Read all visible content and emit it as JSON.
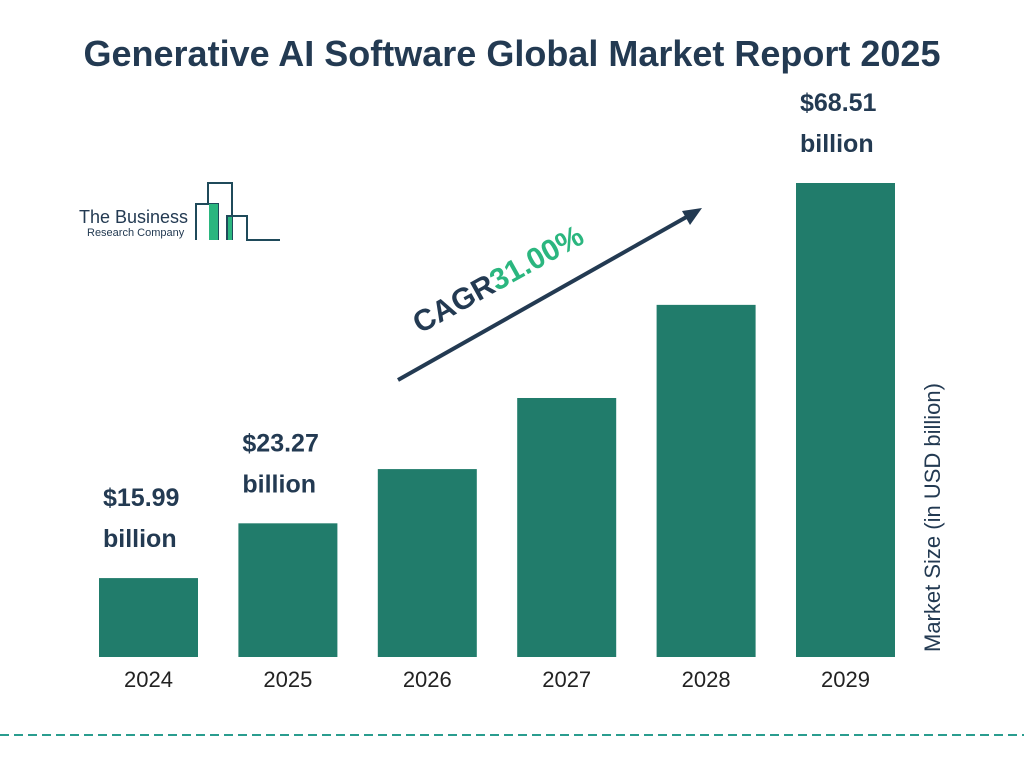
{
  "title": "Generative AI Software Global Market Report 2025",
  "logo": {
    "line1": "The Business",
    "line2": "Research Company"
  },
  "colors": {
    "bar": "#217c6b",
    "text": "#233a52",
    "cagr": "#2bb67f",
    "dash": "#2a9d8f"
  },
  "cagr": {
    "label": "CAGR",
    "value": "31.00%"
  },
  "chart_data": {
    "type": "bar",
    "title": "Generative AI Software Global Market Report 2025",
    "categories": [
      "2024",
      "2025",
      "2026",
      "2027",
      "2028",
      "2029"
    ],
    "values": [
      15.99,
      23.27,
      30.48,
      39.93,
      52.31,
      68.51
    ],
    "data_labels": [
      [
        "$15.99",
        "billion"
      ],
      [
        "$23.27",
        "billion"
      ],
      null,
      null,
      null,
      [
        "$68.51",
        "billion"
      ]
    ],
    "xlabel": "",
    "ylabel": "Market Size (in USD billion)",
    "ylim": [
      5.5,
      68.51
    ],
    "grid": false,
    "legend": "none"
  }
}
